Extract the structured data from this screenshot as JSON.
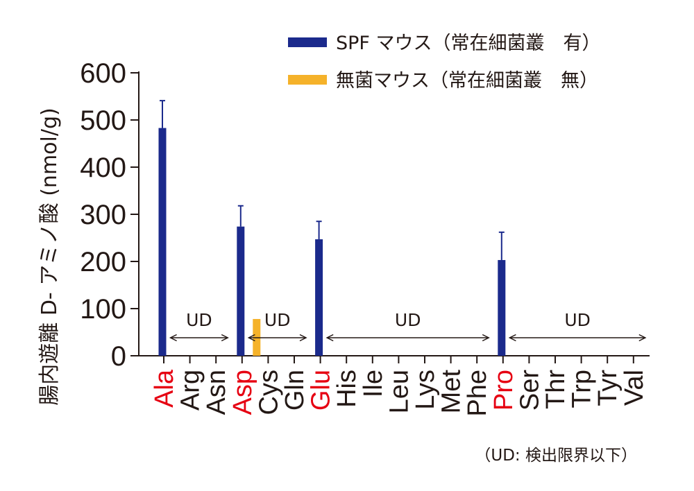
{
  "chart_data": {
    "type": "bar",
    "title": "",
    "ylabel": "腸内遊離 D- アミノ酸 (nmol/g)",
    "xlabel": "",
    "ylim": [
      0,
      600
    ],
    "yticks": [
      "0",
      "100",
      "200",
      "300",
      "400",
      "500",
      "600"
    ],
    "categories": [
      "Ala",
      "Arg",
      "Asn",
      "Asp",
      "Cys",
      "Gln",
      "Glu",
      "His",
      "Ile",
      "Leu",
      "Lys",
      "Met",
      "Phe",
      "Pro",
      "Ser",
      "Thr",
      "Trp",
      "Tyr",
      "Val"
    ],
    "highlighted_categories": [
      "Ala",
      "Asp",
      "Glu",
      "Pro"
    ],
    "series": [
      {
        "name": "SPF マウス（常在細菌叢　有）",
        "color": "#1b2a8c",
        "values": [
          483,
          0,
          0,
          274,
          0,
          0,
          247,
          0,
          0,
          0,
          0,
          0,
          0,
          203,
          0,
          0,
          0,
          0,
          0
        ],
        "errors": [
          58,
          0,
          0,
          44,
          0,
          0,
          38,
          0,
          0,
          0,
          0,
          0,
          0,
          59,
          0,
          0,
          0,
          0,
          0
        ]
      },
      {
        "name": "無菌マウス（常在細菌叢　無）",
        "color": "#f5b22a",
        "values": [
          0,
          0,
          0,
          78,
          0,
          0,
          0,
          0,
          0,
          0,
          0,
          0,
          0,
          0,
          0,
          0,
          0,
          0,
          0
        ],
        "errors": [
          0,
          0,
          0,
          0,
          0,
          0,
          0,
          0,
          0,
          0,
          0,
          0,
          0,
          0,
          0,
          0,
          0,
          0,
          0
        ]
      }
    ],
    "annotations": [
      {
        "text": "UD",
        "from": "Arg",
        "to": "Asn"
      },
      {
        "text": "UD",
        "from": "Cys",
        "to": "Gln"
      },
      {
        "text": "UD",
        "from": "His",
        "to": "Phe"
      },
      {
        "text": "UD",
        "from": "Ser",
        "to": "Val"
      }
    ],
    "highlight_color": "#e60012",
    "footnote": "（UD: 検出限界以下）",
    "legend_position": "top-right",
    "grid": false
  }
}
